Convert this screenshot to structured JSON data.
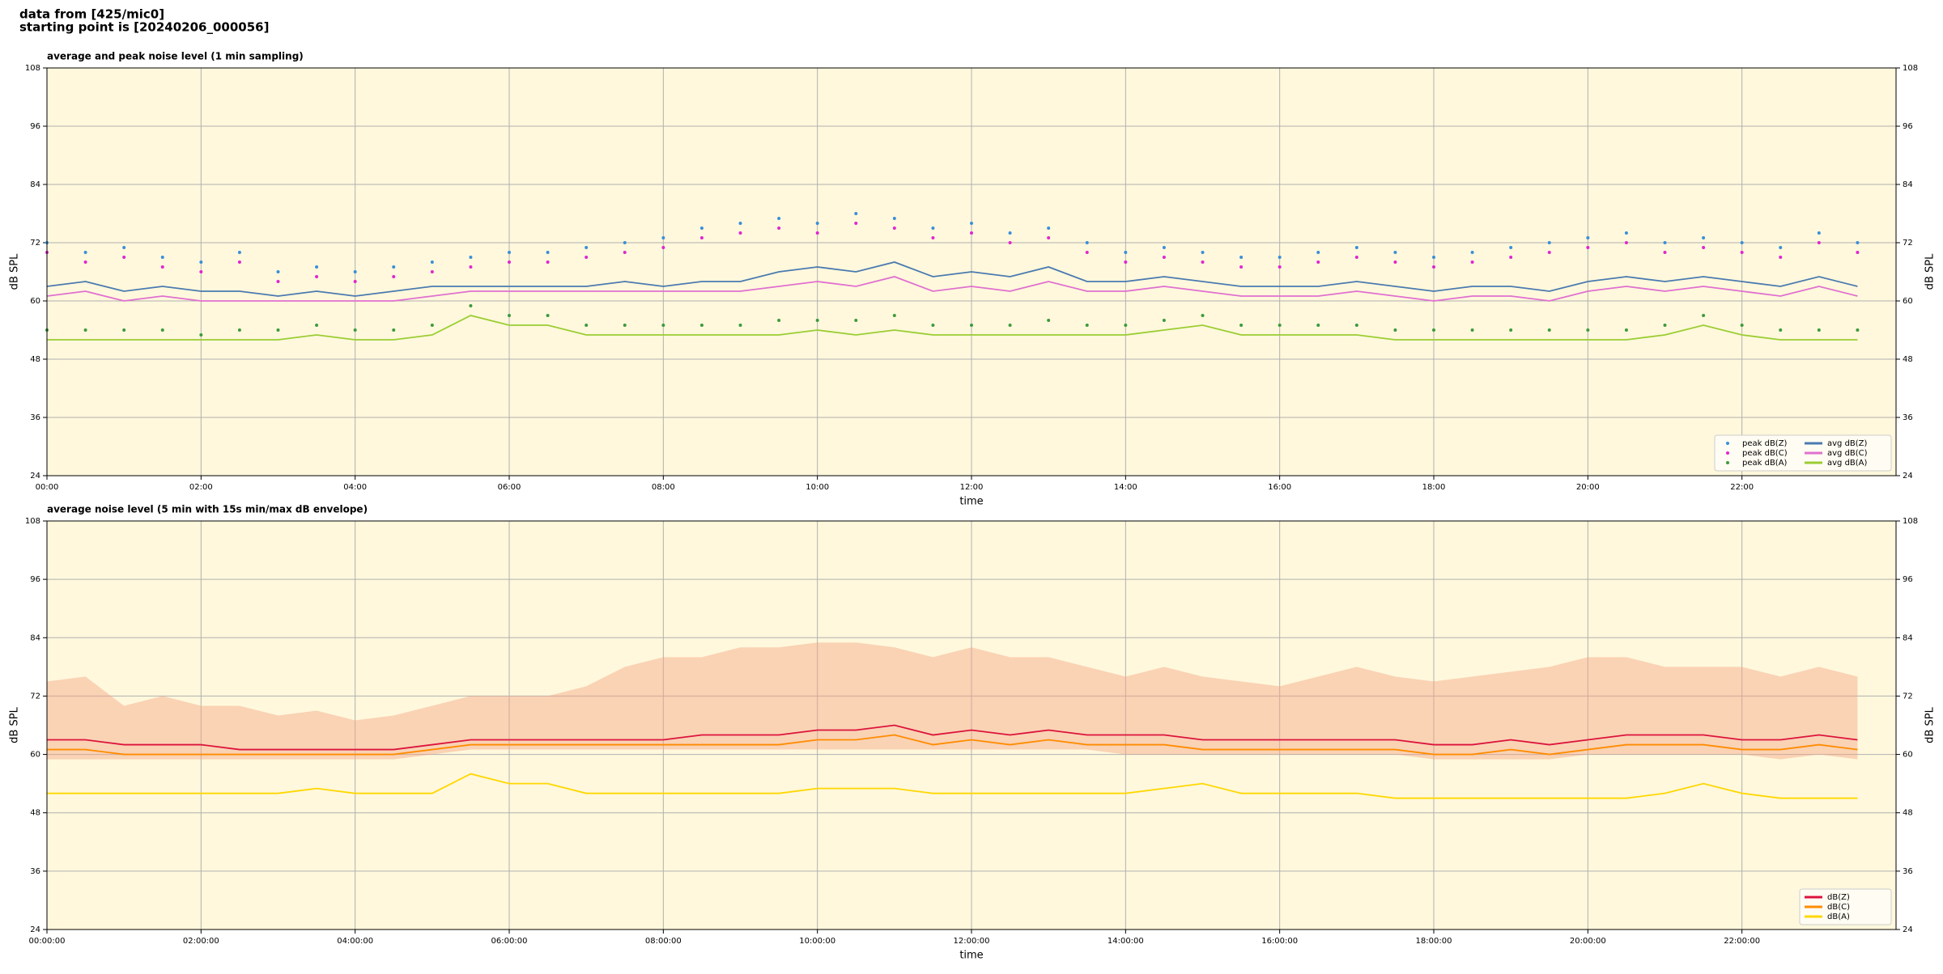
{
  "header": {
    "source": "data from [425/mic0]",
    "start": "starting point is [20240206_000056]"
  },
  "chart_data": [
    {
      "type": "line",
      "title": "average and peak noise level (1 min sampling)",
      "x_label": "time",
      "y_label": "dB SPL",
      "y2_label": "dB SPL",
      "xlim": [
        0,
        24
      ],
      "xticks": [
        {
          "value": 0,
          "label": "00:00"
        },
        {
          "value": 2,
          "label": "02:00"
        },
        {
          "value": 4,
          "label": "04:00"
        },
        {
          "value": 6,
          "label": "06:00"
        },
        {
          "value": 8,
          "label": "08:00"
        },
        {
          "value": 10,
          "label": "10:00"
        },
        {
          "value": 12,
          "label": "12:00"
        },
        {
          "value": 14,
          "label": "14:00"
        },
        {
          "value": 16,
          "label": "16:00"
        },
        {
          "value": 18,
          "label": "18:00"
        },
        {
          "value": 20,
          "label": "20:00"
        },
        {
          "value": 22,
          "label": "22:00"
        }
      ],
      "ylim": [
        24,
        108
      ],
      "yticks": [
        24,
        36,
        48,
        60,
        72,
        84,
        96,
        108
      ],
      "y2lim": [
        24,
        108
      ],
      "y2ticks": [
        24,
        36,
        48,
        60,
        72,
        84,
        96,
        108
      ],
      "grid": true,
      "legend": "lower right",
      "legend_columns": 2,
      "background": "#fff8dc",
      "x": [
        0,
        0.5,
        1,
        1.5,
        2,
        2.5,
        3,
        3.5,
        4,
        4.5,
        5,
        5.5,
        6,
        6.5,
        7,
        7.5,
        8,
        8.5,
        9,
        9.5,
        10,
        10.5,
        11,
        11.5,
        12,
        12.5,
        13,
        13.5,
        14,
        14.5,
        15,
        15.5,
        16,
        16.5,
        17,
        17.5,
        18,
        18.5,
        19,
        19.5,
        20,
        20.5,
        21,
        21.5,
        22,
        22.5,
        23,
        23.5
      ],
      "series": [
        {
          "name": "peak dB(Z)",
          "type": "scatter",
          "color": "#3a8fd9",
          "values": [
            72,
            70,
            71,
            69,
            68,
            70,
            66,
            67,
            66,
            67,
            68,
            69,
            70,
            70,
            71,
            72,
            73,
            75,
            76,
            77,
            76,
            78,
            77,
            75,
            76,
            74,
            75,
            72,
            70,
            71,
            70,
            69,
            69,
            70,
            71,
            70,
            69,
            70,
            71,
            72,
            73,
            74,
            72,
            73,
            72,
            71,
            74,
            72
          ]
        },
        {
          "name": "peak dB(C)",
          "type": "scatter",
          "color": "#e026d0",
          "values": [
            70,
            68,
            69,
            67,
            66,
            68,
            64,
            65,
            64,
            65,
            66,
            67,
            68,
            68,
            69,
            70,
            71,
            73,
            74,
            75,
            74,
            76,
            75,
            73,
            74,
            72,
            73,
            70,
            68,
            69,
            68,
            67,
            67,
            68,
            69,
            68,
            67,
            68,
            69,
            70,
            71,
            72,
            70,
            71,
            70,
            69,
            72,
            70
          ]
        },
        {
          "name": "peak dB(A)",
          "type": "scatter",
          "color": "#3d9a3d",
          "values": [
            54,
            54,
            54,
            54,
            53,
            54,
            54,
            55,
            54,
            54,
            55,
            59,
            57,
            57,
            55,
            55,
            55,
            55,
            55,
            56,
            56,
            56,
            57,
            55,
            55,
            55,
            56,
            55,
            55,
            56,
            57,
            55,
            55,
            55,
            55,
            54,
            54,
            54,
            54,
            54,
            54,
            54,
            55,
            57,
            55,
            54,
            54,
            54
          ]
        },
        {
          "name": "avg dB(Z)",
          "type": "line",
          "color": "#4a7ab0",
          "values": [
            63,
            64,
            62,
            63,
            62,
            62,
            61,
            62,
            61,
            62,
            63,
            63,
            63,
            63,
            63,
            64,
            63,
            64,
            64,
            66,
            67,
            66,
            68,
            65,
            66,
            65,
            67,
            64,
            64,
            65,
            64,
            63,
            63,
            63,
            64,
            63,
            62,
            63,
            63,
            62,
            64,
            65,
            64,
            65,
            64,
            63,
            65,
            63
          ]
        },
        {
          "name": "avg dB(C)",
          "type": "line",
          "color": "#e070d0",
          "values": [
            61,
            62,
            60,
            61,
            60,
            60,
            60,
            60,
            60,
            60,
            61,
            62,
            62,
            62,
            62,
            62,
            62,
            62,
            62,
            63,
            64,
            63,
            65,
            62,
            63,
            62,
            64,
            62,
            62,
            63,
            62,
            61,
            61,
            61,
            62,
            61,
            60,
            61,
            61,
            60,
            62,
            63,
            62,
            63,
            62,
            61,
            63,
            61
          ]
        },
        {
          "name": "avg dB(A)",
          "type": "line",
          "color": "#9acd32",
          "values": [
            52,
            52,
            52,
            52,
            52,
            52,
            52,
            53,
            52,
            52,
            53,
            57,
            55,
            55,
            53,
            53,
            53,
            53,
            53,
            53,
            54,
            53,
            54,
            53,
            53,
            53,
            53,
            53,
            53,
            54,
            55,
            53,
            53,
            53,
            53,
            52,
            52,
            52,
            52,
            52,
            52,
            52,
            53,
            55,
            53,
            52,
            52,
            52
          ]
        }
      ]
    },
    {
      "type": "line",
      "title": "average noise level (5 min with 15s min/max dB envelope)",
      "x_label": "time",
      "y_label": "dB SPL",
      "y2_label": "dB SPL",
      "xlim": [
        0,
        24
      ],
      "xticks": [
        {
          "value": 0,
          "label": "00:00:00"
        },
        {
          "value": 2,
          "label": "02:00:00"
        },
        {
          "value": 4,
          "label": "04:00:00"
        },
        {
          "value": 6,
          "label": "06:00:00"
        },
        {
          "value": 8,
          "label": "08:00:00"
        },
        {
          "value": 10,
          "label": "10:00:00"
        },
        {
          "value": 12,
          "label": "12:00:00"
        },
        {
          "value": 14,
          "label": "14:00:00"
        },
        {
          "value": 16,
          "label": "16:00:00"
        },
        {
          "value": 18,
          "label": "18:00:00"
        },
        {
          "value": 20,
          "label": "20:00:00"
        },
        {
          "value": 22,
          "label": "22:00:00"
        }
      ],
      "ylim": [
        24,
        108
      ],
      "yticks": [
        24,
        36,
        48,
        60,
        72,
        84,
        96,
        108
      ],
      "y2lim": [
        24,
        108
      ],
      "y2ticks": [
        24,
        36,
        48,
        60,
        72,
        84,
        96,
        108
      ],
      "grid": true,
      "legend": "lower right",
      "legend_columns": 1,
      "background": "#fff8dc",
      "x": [
        0,
        0.5,
        1,
        1.5,
        2,
        2.5,
        3,
        3.5,
        4,
        4.5,
        5,
        5.5,
        6,
        6.5,
        7,
        7.5,
        8,
        8.5,
        9,
        9.5,
        10,
        10.5,
        11,
        11.5,
        12,
        12.5,
        13,
        13.5,
        14,
        14.5,
        15,
        15.5,
        16,
        16.5,
        17,
        17.5,
        18,
        18.5,
        19,
        19.5,
        20,
        20.5,
        21,
        21.5,
        22,
        22.5,
        23,
        23.5
      ],
      "band": {
        "color": "#f4a582",
        "max": [
          75,
          76,
          70,
          72,
          70,
          70,
          68,
          69,
          67,
          68,
          70,
          72,
          72,
          72,
          74,
          78,
          80,
          80,
          82,
          82,
          83,
          83,
          82,
          80,
          82,
          80,
          80,
          78,
          76,
          78,
          76,
          75,
          74,
          76,
          78,
          76,
          75,
          76,
          77,
          78,
          80,
          80,
          78,
          78,
          78,
          76,
          78,
          76
        ],
        "min": [
          59,
          59,
          59,
          59,
          59,
          59,
          59,
          59,
          59,
          59,
          60,
          61,
          61,
          61,
          61,
          61,
          61,
          61,
          61,
          61,
          61,
          61,
          61,
          61,
          61,
          61,
          61,
          61,
          60,
          60,
          60,
          60,
          60,
          60,
          60,
          60,
          59,
          59,
          59,
          59,
          60,
          60,
          60,
          60,
          60,
          59,
          60,
          59
        ]
      },
      "series": [
        {
          "name": "dB(Z)",
          "type": "line",
          "color": "#dc143c",
          "values": [
            63,
            63,
            62,
            62,
            62,
            61,
            61,
            61,
            61,
            61,
            62,
            63,
            63,
            63,
            63,
            63,
            63,
            64,
            64,
            64,
            65,
            65,
            66,
            64,
            65,
            64,
            65,
            64,
            64,
            64,
            63,
            63,
            63,
            63,
            63,
            63,
            62,
            62,
            63,
            62,
            63,
            64,
            64,
            64,
            63,
            63,
            64,
            63
          ]
        },
        {
          "name": "dB(C)",
          "type": "line",
          "color": "#ff8c00",
          "values": [
            61,
            61,
            60,
            60,
            60,
            60,
            60,
            60,
            60,
            60,
            61,
            62,
            62,
            62,
            62,
            62,
            62,
            62,
            62,
            62,
            63,
            63,
            64,
            62,
            63,
            62,
            63,
            62,
            62,
            62,
            61,
            61,
            61,
            61,
            61,
            61,
            60,
            60,
            61,
            60,
            61,
            62,
            62,
            62,
            61,
            61,
            62,
            61
          ]
        },
        {
          "name": "dB(A)",
          "type": "line",
          "color": "#ffd700",
          "values": [
            52,
            52,
            52,
            52,
            52,
            52,
            52,
            53,
            52,
            52,
            52,
            56,
            54,
            54,
            52,
            52,
            52,
            52,
            52,
            52,
            53,
            53,
            53,
            52,
            52,
            52,
            52,
            52,
            52,
            53,
            54,
            52,
            52,
            52,
            52,
            51,
            51,
            51,
            51,
            51,
            51,
            51,
            52,
            54,
            52,
            51,
            51,
            51
          ]
        }
      ]
    }
  ]
}
